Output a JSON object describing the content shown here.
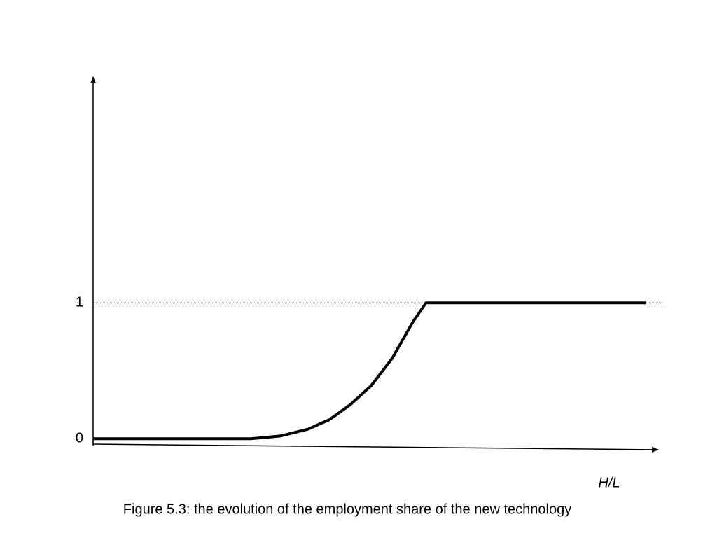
{
  "chart_data": {
    "type": "line",
    "x_label": "H/L",
    "caption": "Figure 5.3: the evolution of the employment share of the new technology",
    "x": [
      0,
      27.9,
      33.1,
      38.0,
      41.8,
      45.5,
      49.2,
      52.9,
      56.6,
      58.9,
      97.8
    ],
    "series": [
      {
        "color": "#000000",
        "values": [
          0,
          0,
          0.02,
          0.07,
          0.14,
          0.25,
          0.39,
          0.59,
          0.86,
          1,
          1
        ]
      }
    ],
    "xlim": [
      0,
      100
    ],
    "ylim": [
      -0.05,
      2.66
    ],
    "yticks": [
      0,
      1
    ],
    "grid": true
  }
}
